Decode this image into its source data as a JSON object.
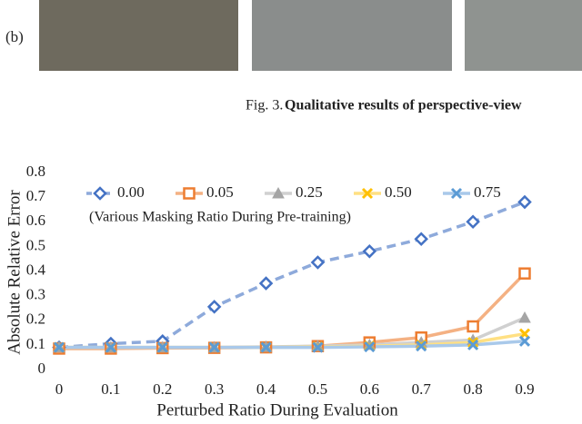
{
  "figure_top": {
    "panel_label": "(b)",
    "caption_label": "Fig. 3.",
    "caption_text": "Qualitative results of perspective-view"
  },
  "chart_data": {
    "type": "line",
    "ylabel": "Absolute Relative Error",
    "xlabel": "Perturbed Ratio During Evaluation",
    "annotation": "(Various Masking Ratio During Pre-training)",
    "x": [
      0,
      0.1,
      0.2,
      0.3,
      0.4,
      0.5,
      0.6,
      0.7,
      0.8,
      0.9
    ],
    "xlim": [
      0,
      0.9
    ],
    "xticks": [
      0,
      0.1,
      0.2,
      0.3,
      0.4,
      0.5,
      0.6,
      0.7,
      0.8,
      0.9
    ],
    "ylim": [
      0,
      0.8
    ],
    "yticks": [
      0,
      0.1,
      0.2,
      0.3,
      0.4,
      0.5,
      0.6,
      0.7,
      0.8
    ],
    "grid": false,
    "series": [
      {
        "name": "0.00",
        "color": "#4472c4",
        "line_color": "#8eaadb",
        "dashed": true,
        "marker": "diamond",
        "values": [
          0.09,
          0.105,
          0.115,
          0.255,
          0.35,
          0.435,
          0.48,
          0.53,
          0.6,
          0.68
        ]
      },
      {
        "name": "0.05",
        "color": "#ed7d31",
        "line_color": "#f4b183",
        "dashed": false,
        "marker": "square",
        "values": [
          0.085,
          0.085,
          0.087,
          0.088,
          0.09,
          0.095,
          0.11,
          0.13,
          0.175,
          0.39
        ]
      },
      {
        "name": "0.25",
        "color": "#a5a5a5",
        "line_color": "#d0d0d0",
        "dashed": false,
        "marker": "triangle",
        "values": [
          0.09,
          0.09,
          0.09,
          0.09,
          0.092,
          0.095,
          0.1,
          0.11,
          0.12,
          0.21
        ]
      },
      {
        "name": "0.50",
        "color": "#ffc000",
        "line_color": "#ffe083",
        "dashed": false,
        "marker": "x",
        "values": [
          0.09,
          0.09,
          0.09,
          0.09,
          0.09,
          0.092,
          0.095,
          0.1,
          0.11,
          0.145
        ]
      },
      {
        "name": "0.75",
        "color": "#5b9bd5",
        "line_color": "#a9c9ea",
        "dashed": false,
        "marker": "x",
        "values": [
          0.09,
          0.09,
          0.09,
          0.09,
          0.09,
          0.09,
          0.092,
          0.095,
          0.1,
          0.115
        ]
      }
    ]
  }
}
